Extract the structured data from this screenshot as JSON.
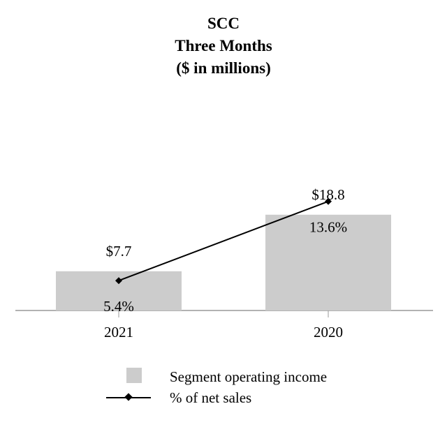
{
  "chart_data": {
    "type": "bar",
    "title_lines": [
      "SCC",
      "Three Months",
      "($ in millions)"
    ],
    "categories": [
      "2021",
      "2020"
    ],
    "series": [
      {
        "name": "Segment operating income",
        "kind": "bar",
        "values": [
          7.7,
          18.8
        ],
        "labels": [
          "$7.7",
          "$18.8"
        ],
        "color": "#cccccc"
      },
      {
        "name": "% of net sales",
        "kind": "line",
        "values": [
          5.4,
          13.6
        ],
        "labels": [
          "5.4%",
          "13.6%"
        ],
        "color": "#000000"
      }
    ],
    "xlabel": "",
    "ylabel": "",
    "grid": false,
    "legend_position": "bottom"
  }
}
